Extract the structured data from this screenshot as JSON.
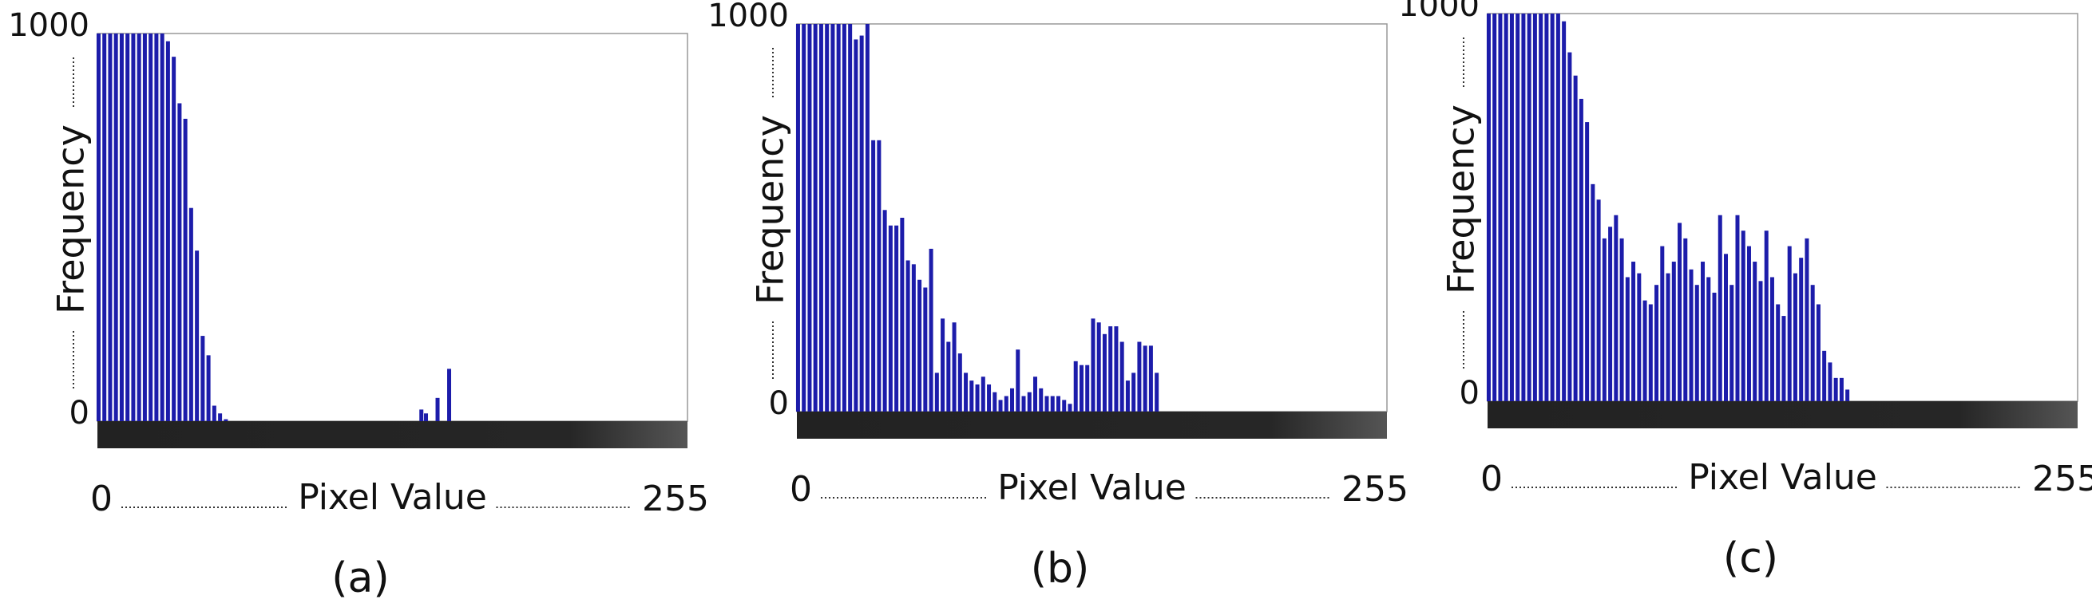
{
  "chart_data": [
    {
      "type": "bar",
      "caption": "(a)",
      "ylabel": "Frequency",
      "xlabel": "Pixel Value",
      "color": "#1c1caa",
      "xlim": [
        0,
        255
      ],
      "xticks": [
        0,
        255
      ],
      "ylim": [
        0,
        1000
      ],
      "yticks": [
        0,
        1000
      ],
      "x": [
        0.5,
        3,
        5.5,
        8,
        10.5,
        13,
        15.5,
        18,
        20.5,
        23,
        25.5,
        28,
        30.5,
        33,
        35.5,
        38,
        40.5,
        43,
        45.5,
        48,
        50.5,
        53,
        55.5,
        140,
        142,
        147,
        152
      ],
      "values": [
        1000,
        1000,
        1000,
        1000,
        1000,
        1000,
        1000,
        1000,
        1000,
        1000,
        1000,
        1000,
        980,
        940,
        820,
        780,
        550,
        440,
        220,
        170,
        40,
        20,
        5,
        30,
        20,
        60,
        135
      ]
    },
    {
      "type": "bar",
      "caption": "(b)",
      "ylabel": "Frequency",
      "xlabel": "Pixel Value",
      "color": "#1c1caa",
      "xlim": [
        0,
        255
      ],
      "xticks": [
        0,
        255
      ],
      "ylim": [
        0,
        1000
      ],
      "yticks": [
        0,
        1000
      ],
      "x": [
        0.5,
        3,
        5.5,
        8,
        10.5,
        13,
        15.5,
        18,
        20.5,
        23,
        25.5,
        28,
        30.5,
        33,
        35.5,
        38,
        40.5,
        43,
        45.5,
        48,
        50.5,
        53,
        55.5,
        58,
        60.5,
        63,
        65.5,
        68,
        70.5,
        73,
        75.5,
        78,
        80.5,
        83,
        85.5,
        88,
        90.5,
        93,
        95.5,
        98,
        100.5,
        103,
        105.5,
        108,
        110.5,
        113,
        115.5,
        118,
        120.5,
        123,
        125.5,
        128,
        130.5,
        133,
        135.5,
        138,
        140.5,
        143,
        145.5,
        148,
        150.5,
        153,
        155.5
      ],
      "values": [
        1000,
        1000,
        1000,
        1000,
        1000,
        1000,
        1000,
        1000,
        1000,
        1000,
        960,
        970,
        1000,
        700,
        700,
        520,
        480,
        480,
        500,
        390,
        380,
        340,
        320,
        420,
        100,
        240,
        180,
        230,
        150,
        100,
        80,
        70,
        90,
        70,
        50,
        30,
        40,
        60,
        160,
        40,
        50,
        90,
        60,
        40,
        40,
        40,
        30,
        20,
        130,
        120,
        120,
        240,
        230,
        200,
        220,
        220,
        180,
        80,
        100,
        180,
        170,
        170,
        100
      ]
    },
    {
      "type": "bar",
      "caption": "(c)",
      "ylabel": "Frequency",
      "xlabel": "Pixel Value",
      "color": "#1c1caa",
      "xlim": [
        0,
        255
      ],
      "xticks": [
        0,
        255
      ],
      "ylim": [
        0,
        1000
      ],
      "yticks": [
        0,
        1000
      ],
      "x": [
        0.5,
        3,
        5.5,
        8,
        10.5,
        13,
        15.5,
        18,
        20.5,
        23,
        25.5,
        28,
        30.5,
        33,
        35.5,
        38,
        40.5,
        43,
        45.5,
        48,
        50.5,
        53,
        55.5,
        58,
        60.5,
        63,
        65.5,
        68,
        70.5,
        73,
        75.5,
        78,
        80.5,
        83,
        85.5,
        88,
        90.5,
        93,
        95.5,
        98,
        100.5,
        103,
        105.5,
        108,
        110.5,
        113,
        115.5,
        118,
        120.5,
        123,
        125.5,
        128,
        130.5,
        133,
        135.5,
        138,
        140.5,
        143,
        145.5,
        148,
        150.5,
        153,
        155.5
      ],
      "values": [
        1000,
        1000,
        1000,
        1000,
        1000,
        1000,
        1000,
        1000,
        1000,
        1000,
        1000,
        1000,
        1000,
        980,
        900,
        840,
        780,
        720,
        560,
        520,
        420,
        450,
        480,
        420,
        320,
        360,
        330,
        260,
        250,
        300,
        400,
        330,
        360,
        460,
        420,
        340,
        300,
        360,
        320,
        280,
        480,
        380,
        300,
        480,
        440,
        400,
        360,
        310,
        440,
        320,
        250,
        220,
        400,
        330,
        370,
        420,
        300,
        250,
        130,
        100,
        60,
        60,
        30
      ]
    }
  ]
}
